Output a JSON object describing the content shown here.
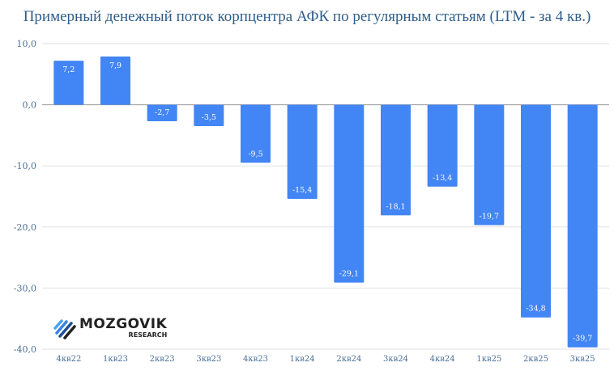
{
  "chart_data": {
    "type": "bar",
    "title": "Примерный денежный поток корпцентра АФК по регулярным статьям (LTM - за 4 кв.)",
    "categories": [
      "4кв22",
      "1кв23",
      "2кв23",
      "3кв23",
      "4кв23",
      "1кв24",
      "2кв24",
      "3кв24",
      "4кв24",
      "1кв25",
      "2кв25",
      "3кв25"
    ],
    "values": [
      7.2,
      7.9,
      -2.7,
      -3.5,
      -9.5,
      -15.4,
      -29.1,
      -18.1,
      -13.4,
      -19.7,
      -34.8,
      -39.7
    ],
    "data_labels": [
      "7,2",
      "7,9",
      "-2,7",
      "-3,5",
      "-9,5",
      "-15,4",
      "-29,1",
      "-18,1",
      "-13,4",
      "-19,7",
      "-34,8",
      "-39,7"
    ],
    "yticks": [
      10,
      0,
      -10,
      -20,
      -30,
      -40
    ],
    "ytick_labels": [
      "10,0",
      "0,0",
      "-10,0",
      "-20,0",
      "-30,0",
      "-40,0"
    ],
    "ylim": [
      -40,
      10
    ],
    "grid": true,
    "xlabel": "",
    "ylabel": "",
    "colors": {
      "bar": "#4285f4",
      "title": "#2f5d8a",
      "axis_text": "#4a6f96"
    }
  },
  "logo": {
    "name": "MOZGOVIK",
    "sub": "RESEARCH"
  }
}
